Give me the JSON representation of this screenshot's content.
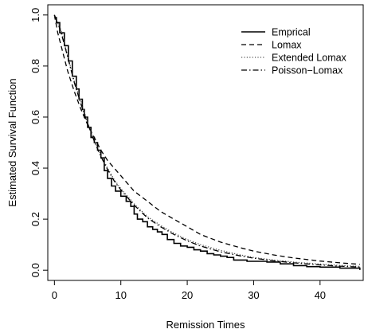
{
  "chart_data": {
    "type": "line",
    "xlabel": "Remission Times",
    "ylabel": "Estimated Survival Function",
    "xlim": [
      -1,
      46.5
    ],
    "ylim": [
      -0.04,
      1.04
    ],
    "xticks": [
      0,
      10,
      20,
      30,
      40
    ],
    "yticks": [
      0.0,
      0.2,
      0.4,
      0.6,
      0.8,
      1.0
    ],
    "ytick_labels": [
      "0.0",
      "0.2",
      "0.4",
      "0.6",
      "0.8",
      "1.0"
    ],
    "xtick_labels": [
      "0",
      "10",
      "20",
      "30",
      "40"
    ],
    "grid": false,
    "legend_position": "top-right",
    "series": [
      {
        "name": "Emprical",
        "style": "solid",
        "color": "#000000",
        "step": true,
        "x": [
          0,
          0.3,
          0.8,
          1.5,
          2.1,
          2.7,
          3.3,
          3.7,
          4.2,
          4.5,
          5.0,
          5.5,
          6.0,
          6.5,
          7.0,
          7.5,
          8.0,
          8.6,
          9.2,
          10.0,
          10.8,
          11.5,
          12.0,
          12.5,
          13.3,
          14.0,
          14.8,
          15.5,
          16.2,
          17.0,
          18.0,
          19.0,
          20.0,
          21.0,
          22.0,
          23.0,
          24.0,
          25.0,
          26.0,
          27.0,
          29.0,
          32.0,
          34.0,
          36.0,
          38.0,
          40.0,
          43.0,
          46.0
        ],
        "y": [
          0.99,
          0.97,
          0.93,
          0.88,
          0.82,
          0.76,
          0.71,
          0.67,
          0.63,
          0.6,
          0.56,
          0.52,
          0.5,
          0.47,
          0.44,
          0.39,
          0.36,
          0.33,
          0.31,
          0.29,
          0.27,
          0.25,
          0.22,
          0.2,
          0.19,
          0.17,
          0.16,
          0.15,
          0.14,
          0.12,
          0.105,
          0.095,
          0.09,
          0.08,
          0.075,
          0.065,
          0.06,
          0.055,
          0.05,
          0.04,
          0.035,
          0.032,
          0.025,
          0.018,
          0.014,
          0.012,
          0.008,
          0.001
        ]
      },
      {
        "name": "Lomax",
        "style": "dashed",
        "color": "#000000",
        "x": [
          0,
          0.5,
          1,
          1.5,
          2,
          3,
          4,
          5,
          6,
          7,
          8,
          9,
          10,
          12,
          14,
          16,
          18,
          20,
          22,
          25,
          28,
          30,
          33,
          36,
          40,
          43,
          46
        ],
        "y": [
          1.0,
          0.93,
          0.88,
          0.83,
          0.78,
          0.7,
          0.63,
          0.57,
          0.52,
          0.47,
          0.43,
          0.4,
          0.37,
          0.31,
          0.27,
          0.23,
          0.2,
          0.17,
          0.14,
          0.11,
          0.088,
          0.075,
          0.06,
          0.048,
          0.036,
          0.029,
          0.023
        ]
      },
      {
        "name": "Extended Lomax",
        "style": "dotted",
        "color": "#555555",
        "x": [
          0,
          0.5,
          1,
          1.5,
          2,
          3,
          4,
          5,
          6,
          7,
          8,
          9,
          10,
          12,
          14,
          16,
          18,
          20,
          22,
          25,
          28,
          30,
          33,
          36,
          40,
          43,
          46
        ],
        "y": [
          0.995,
          0.97,
          0.94,
          0.89,
          0.84,
          0.74,
          0.66,
          0.58,
          0.51,
          0.45,
          0.4,
          0.355,
          0.32,
          0.26,
          0.21,
          0.175,
          0.145,
          0.12,
          0.1,
          0.078,
          0.06,
          0.05,
          0.04,
          0.032,
          0.024,
          0.019,
          0.015
        ]
      },
      {
        "name": "Poisson−Lomax",
        "style": "dashdot",
        "color": "#000000",
        "x": [
          0,
          0.5,
          1,
          1.5,
          2,
          3,
          4,
          5,
          6,
          7,
          8,
          9,
          10,
          12,
          14,
          16,
          18,
          20,
          22,
          25,
          28,
          30,
          33,
          36,
          40,
          43,
          46
        ],
        "y": [
          1.0,
          0.97,
          0.93,
          0.885,
          0.835,
          0.735,
          0.65,
          0.575,
          0.505,
          0.445,
          0.395,
          0.35,
          0.315,
          0.255,
          0.205,
          0.17,
          0.14,
          0.115,
          0.095,
          0.072,
          0.056,
          0.047,
          0.037,
          0.029,
          0.021,
          0.016,
          0.012
        ]
      }
    ]
  }
}
